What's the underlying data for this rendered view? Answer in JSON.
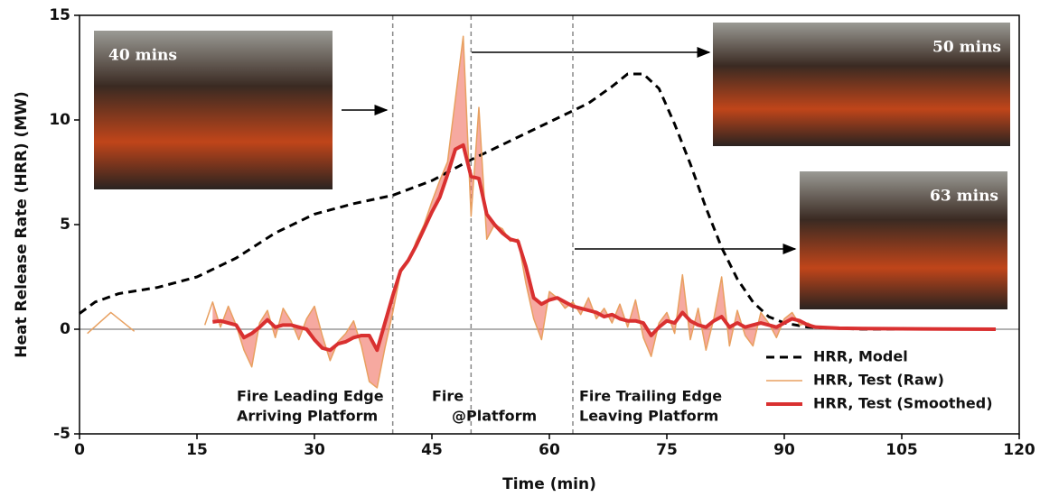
{
  "chart_data": {
    "type": "line",
    "xlabel": "Time (min)",
    "ylabel": "Heat Release Rate (HRR) (MW)",
    "xlim": [
      0,
      120
    ],
    "xticks": [
      0,
      15,
      30,
      45,
      60,
      75,
      90,
      105,
      120
    ],
    "ylim": [
      -5,
      15
    ],
    "yticks": [
      -5,
      0,
      5,
      10,
      15
    ],
    "legend": "lower right",
    "series": [
      {
        "name": "HRR, Model",
        "color": "#000000",
        "dash": true,
        "x": [
          0,
          2,
          5,
          10,
          15,
          20,
          25,
          30,
          35,
          40,
          45,
          50,
          55,
          60,
          65,
          68,
          70,
          72,
          74,
          76,
          78,
          80,
          82,
          84,
          86,
          88,
          90,
          93,
          96,
          100,
          117
        ],
        "values": [
          0.75,
          1.3,
          1.7,
          2.0,
          2.5,
          3.4,
          4.6,
          5.5,
          6.0,
          6.4,
          7.1,
          8.1,
          9.0,
          9.9,
          10.8,
          11.6,
          12.2,
          12.2,
          11.5,
          9.8,
          7.9,
          5.8,
          3.9,
          2.4,
          1.3,
          0.6,
          0.3,
          0.1,
          0.05,
          0,
          0
        ]
      },
      {
        "name": "HRR, Test (Raw)",
        "color": "#e8a060",
        "x": [
          1,
          4,
          7,
          10,
          16,
          17,
          18,
          19,
          20,
          21,
          22,
          23,
          24,
          25,
          26,
          27,
          28,
          29,
          30,
          31,
          32,
          33,
          34,
          35,
          36,
          37,
          38,
          39,
          40,
          41,
          42,
          43,
          44,
          45,
          46,
          47,
          48,
          49,
          50,
          51,
          52,
          53,
          54,
          55,
          56,
          57,
          58,
          59,
          60,
          61,
          62,
          63,
          64,
          65,
          66,
          67,
          68,
          69,
          70,
          71,
          72,
          73,
          74,
          75,
          76,
          77,
          78,
          79,
          80,
          81,
          82,
          83,
          84,
          85,
          86,
          87,
          88,
          89,
          90,
          91,
          92,
          93,
          94,
          97,
          100,
          105,
          110,
          117
        ],
        "values": [
          -0.2,
          0.8,
          -0.1,
          null,
          0.2,
          1.3,
          0.1,
          1.1,
          0.2,
          -1.0,
          -1.8,
          0.3,
          0.9,
          -0.4,
          1.0,
          0.4,
          -0.5,
          0.5,
          1.1,
          -0.3,
          -1.5,
          -0.6,
          -0.2,
          0.4,
          -0.8,
          -2.5,
          -2.8,
          -0.9,
          0.8,
          2.7,
          3.2,
          4.2,
          5.0,
          6.1,
          7.1,
          8.0,
          11.0,
          14.0,
          5.4,
          10.6,
          4.3,
          5.0,
          4.8,
          4.2,
          4.3,
          2.2,
          0.5,
          -0.5,
          1.8,
          1.5,
          1.0,
          1.3,
          0.7,
          1.5,
          0.5,
          1.0,
          0.3,
          1.2,
          0.1,
          1.4,
          -0.4,
          -1.3,
          0.3,
          0.8,
          -0.2,
          2.6,
          -0.5,
          1.0,
          -1.0,
          0.5,
          2.5,
          -0.8,
          0.9,
          -0.3,
          -0.8,
          0.8,
          0.3,
          -0.4,
          0.5,
          0.8,
          0.2,
          0.3,
          0.1,
          0.05,
          0.05,
          0,
          0,
          0
        ]
      },
      {
        "name": "HRR, Test (Smoothed)",
        "color": "#d93030",
        "x": [
          17,
          18,
          19,
          20,
          21,
          22,
          23,
          24,
          25,
          26,
          27,
          28,
          29,
          30,
          31,
          32,
          33,
          34,
          35,
          36,
          37,
          38,
          39,
          40,
          41,
          42,
          43,
          44,
          45,
          46,
          47,
          48,
          49,
          50,
          51,
          52,
          53,
          54,
          55,
          56,
          57,
          58,
          59,
          60,
          61,
          62,
          63,
          64,
          65,
          66,
          67,
          68,
          69,
          70,
          71,
          72,
          73,
          74,
          75,
          76,
          77,
          78,
          79,
          80,
          81,
          82,
          83,
          84,
          85,
          86,
          87,
          88,
          89,
          90,
          91,
          92,
          93,
          94,
          97,
          100,
          105,
          110,
          117
        ],
        "values": [
          0.35,
          0.4,
          0.3,
          0.2,
          -0.4,
          -0.2,
          0.1,
          0.45,
          0.1,
          0.2,
          0.2,
          0.1,
          0.0,
          -0.5,
          -0.9,
          -1.0,
          -0.7,
          -0.6,
          -0.4,
          -0.3,
          -0.3,
          -1.0,
          0.3,
          1.6,
          2.8,
          3.3,
          4.0,
          4.8,
          5.6,
          6.3,
          7.4,
          8.6,
          8.8,
          7.3,
          7.2,
          5.5,
          5.0,
          4.6,
          4.3,
          4.2,
          3.0,
          1.5,
          1.2,
          1.4,
          1.5,
          1.3,
          1.1,
          1.0,
          0.9,
          0.8,
          0.6,
          0.7,
          0.5,
          0.4,
          0.4,
          0.3,
          -0.3,
          0.1,
          0.4,
          0.3,
          0.8,
          0.4,
          0.2,
          0.1,
          0.4,
          0.6,
          0.1,
          0.3,
          0.1,
          0.2,
          0.3,
          0.2,
          0.1,
          0.3,
          0.5,
          0.4,
          0.2,
          0.1,
          0.05,
          0.03,
          0.02,
          0.01,
          0
        ]
      }
    ],
    "vlines": [
      40,
      50,
      63
    ],
    "annotations": [
      {
        "x": 40,
        "text": [
          "Fire Leading Edge",
          "Arriving Platform"
        ]
      },
      {
        "x": 50,
        "text": [
          "Fire",
          "@Platform"
        ]
      },
      {
        "x": 63,
        "text": [
          "Fire Trailing Edge",
          "Leaving Platform"
        ]
      }
    ],
    "photos": [
      "40 mins",
      "50 mins",
      "63 mins"
    ]
  }
}
